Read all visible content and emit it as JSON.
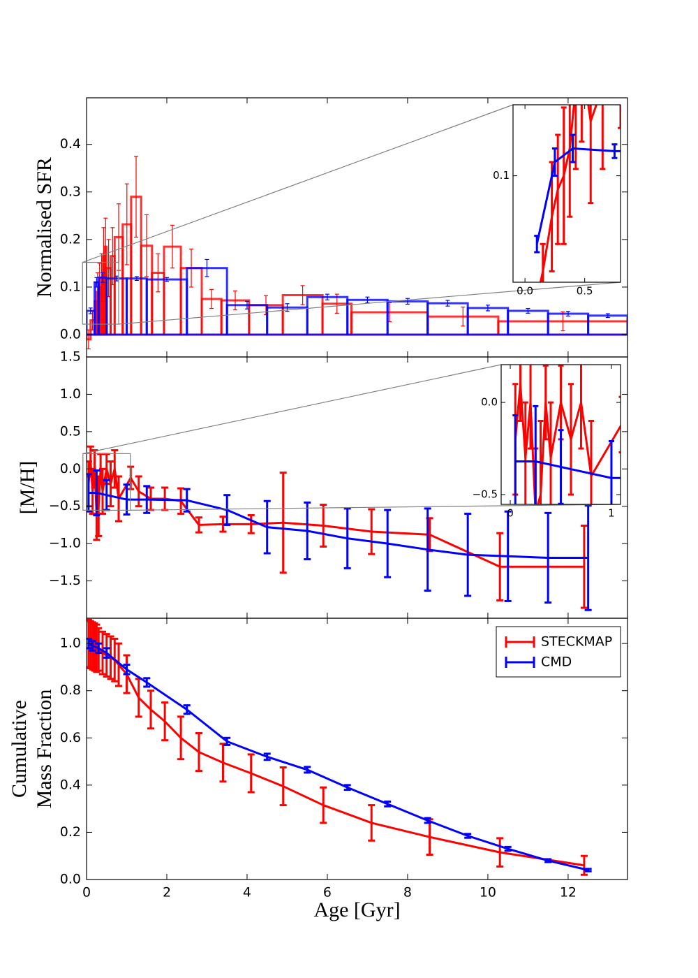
{
  "chart_data": [
    {
      "type": "histogram",
      "ylabel": "Normalised SFR",
      "xlim": [
        0,
        13.48
      ],
      "ylim": [
        -0.047,
        0.498
      ],
      "yticks": [
        {
          "value": 0,
          "label": "0.0"
        },
        0.1,
        0.2,
        0.3,
        0.4
      ],
      "series": [
        {
          "color": "#ff0000",
          "bins": [
            0,
            0.1,
            0.2,
            0.25,
            0.3,
            0.35,
            0.4,
            0.45,
            0.5,
            0.6,
            0.7,
            0.9,
            1.11,
            1.36,
            1.63,
            1.93,
            2.35,
            2.87,
            3.36,
            4.05,
            4.89,
            5.88,
            6.6,
            8.5,
            10.26,
            13.48
          ],
          "values": [
            -0.01,
            0.03,
            0.07,
            0.09,
            0.1,
            0.12,
            0.165,
            0.185,
            0.14,
            0.165,
            0.205,
            0.232,
            0.29,
            0.187,
            0.13,
            0.185,
            0.14,
            0.075,
            0.072,
            0.062,
            0.083,
            0.065,
            0.047,
            0.038,
            0.028
          ],
          "errors": [
            0.02,
            0.02,
            0.04,
            0.04,
            0.05,
            0.05,
            0.06,
            0.06,
            0.06,
            0.06,
            0.07,
            0.085,
            0.085,
            0.065,
            0.04,
            0.045,
            0.04,
            0.02,
            0.02,
            0.02,
            0.02,
            0.02,
            0.02,
            0.02,
            0.02
          ]
        },
        {
          "color": "#0000ff",
          "bins": [
            0,
            0.2,
            0.3,
            0.5,
            1.0,
            1.5,
            2.5,
            3.5,
            4.5,
            5.5,
            6.5,
            7.5,
            8.5,
            9.5,
            10.5,
            11.5,
            12.5,
            13.48
          ],
          "values": [
            0.05,
            0.11,
            0.12,
            0.118,
            0.118,
            0.116,
            0.14,
            0.062,
            0.057,
            0.079,
            0.073,
            0.07,
            0.066,
            0.056,
            0.05,
            0.044,
            0.04
          ],
          "errors": [
            0.006,
            0.01,
            0.01,
            0.005,
            0.004,
            0.004,
            0.018,
            0.008,
            0.008,
            0.006,
            0.006,
            0.006,
            0.006,
            0.006,
            0.005,
            0.005,
            0.004
          ]
        }
      ],
      "inset": {
        "xlim": [
          -0.1,
          0.8
        ],
        "ylim": [
          0.022,
          0.152
        ],
        "xticks": [
          {
            "value": 0,
            "label": "0.0"
          },
          0.5
        ],
        "yticks": [
          0.1
        ]
      }
    },
    {
      "type": "line",
      "ylabel": "[M/H]",
      "xlim": [
        0,
        13.48
      ],
      "ylim": [
        -2.0,
        1.5
      ],
      "yticks": [
        {
          "value": -1.5,
          "label": "−1.5"
        },
        {
          "value": -1,
          "label": "−1.0"
        },
        {
          "value": -0.5,
          "label": "−0.5"
        },
        {
          "value": 0,
          "label": "0.0"
        },
        0.5,
        {
          "value": 1,
          "label": "1.0"
        },
        1.5
      ],
      "series": [
        {
          "color": "#ff0000",
          "x": [
            0.05,
            0.1,
            0.15,
            0.2,
            0.25,
            0.3,
            0.35,
            0.4,
            0.5,
            0.6,
            0.7,
            0.8,
            1.1,
            1.3,
            1.6,
            1.95,
            2.35,
            2.8,
            3.4,
            4.1,
            4.9,
            5.9,
            7.1,
            8.55,
            10.3,
            12.4
          ],
          "values": [
            -0.2,
            0.1,
            -0.3,
            0.0,
            -0.6,
            -0.5,
            0.0,
            -0.3,
            0.0,
            -0.2,
            0.0,
            -0.4,
            -0.12,
            -0.3,
            -0.4,
            -0.4,
            -0.43,
            -0.75,
            -0.74,
            -0.74,
            -0.72,
            -0.76,
            -0.84,
            -0.88,
            -1.31,
            -1.31
          ],
          "errors": [
            0.3,
            0.2,
            0.3,
            0.25,
            0.35,
            0.4,
            0.2,
            0.3,
            0.2,
            0.3,
            0.25,
            0.3,
            0.15,
            0.2,
            0.15,
            0.15,
            0.17,
            0.1,
            0.1,
            0.12,
            0.67,
            0.28,
            0.3,
            0.22,
            0.45,
            0.55
          ]
        },
        {
          "color": "#0000ff",
          "x": [
            0.05,
            0.25,
            0.5,
            1.0,
            1.5,
            2.5,
            3.5,
            4.5,
            5.5,
            6.5,
            7.5,
            8.5,
            9.5,
            10.5,
            11.5,
            12.5
          ],
          "values": [
            -0.32,
            -0.32,
            -0.35,
            -0.41,
            -0.41,
            -0.42,
            -0.55,
            -0.78,
            -0.83,
            -0.93,
            -1.0,
            -1.08,
            -1.15,
            -1.17,
            -1.19,
            -1.19
          ],
          "errors": [
            0.25,
            0.3,
            0.2,
            0.2,
            0.18,
            0.15,
            0.2,
            0.35,
            0.38,
            0.4,
            0.45,
            0.55,
            0.55,
            0.6,
            0.6,
            0.7
          ]
        }
      ],
      "inset": {
        "xlim": [
          -0.09,
          1.09
        ],
        "ylim": [
          -0.553,
          0.205
        ],
        "xticks": [
          0,
          1
        ],
        "yticks": [
          {
            "value": -0.5,
            "label": "−0.5"
          },
          {
            "value": 0,
            "label": "0.0"
          }
        ]
      }
    },
    {
      "type": "line",
      "ylabel": [
        "Cumulative",
        "Mass Fraction"
      ],
      "xlabel": "Age [Gyr]",
      "xlim": [
        0,
        13.48
      ],
      "ylim": [
        0,
        1.107
      ],
      "xticks": [
        0,
        2,
        4,
        6,
        8,
        10,
        12
      ],
      "yticks": [
        {
          "value": 0,
          "label": "0.0"
        },
        0.2,
        0.4,
        0.6,
        0.8,
        {
          "value": 1,
          "label": "1.0"
        }
      ],
      "legend": "upper right",
      "series": [
        {
          "name": "STECKMAP",
          "color": "#ff0000",
          "x": [
            0.05,
            0.1,
            0.15,
            0.2,
            0.25,
            0.3,
            0.4,
            0.5,
            0.6,
            0.7,
            0.8,
            1.0,
            1.3,
            1.6,
            1.95,
            2.35,
            2.8,
            3.4,
            4.1,
            4.9,
            5.9,
            7.1,
            8.55,
            10.3,
            12.4
          ],
          "values": [
            1.0,
            0.995,
            0.99,
            0.985,
            0.98,
            0.975,
            0.96,
            0.95,
            0.94,
            0.93,
            0.91,
            0.87,
            0.77,
            0.72,
            0.67,
            0.6,
            0.54,
            0.495,
            0.45,
            0.395,
            0.315,
            0.24,
            0.18,
            0.115,
            0.06
          ],
          "errors": [
            0.1,
            0.1,
            0.1,
            0.1,
            0.1,
            0.09,
            0.09,
            0.09,
            0.09,
            0.09,
            0.09,
            0.08,
            0.08,
            0.08,
            0.08,
            0.09,
            0.08,
            0.08,
            0.08,
            0.08,
            0.075,
            0.075,
            0.075,
            0.06,
            0.04
          ]
        },
        {
          "name": "CMD",
          "color": "#0000ff",
          "x": [
            0.05,
            0.15,
            0.3,
            0.5,
            1.0,
            1.5,
            2.5,
            3.5,
            4.5,
            5.5,
            6.5,
            7.5,
            8.5,
            9.5,
            10.5,
            11.5,
            12.5
          ],
          "values": [
            1.0,
            0.99,
            0.98,
            0.96,
            0.89,
            0.835,
            0.72,
            0.585,
            0.52,
            0.465,
            0.39,
            0.32,
            0.25,
            0.185,
            0.13,
            0.08,
            0.04
          ],
          "errors": [
            0.02,
            0.02,
            0.02,
            0.02,
            0.02,
            0.018,
            0.018,
            0.015,
            0.013,
            0.012,
            0.01,
            0.01,
            0.01,
            0.008,
            0.008,
            0.006,
            0.005
          ]
        }
      ]
    }
  ]
}
